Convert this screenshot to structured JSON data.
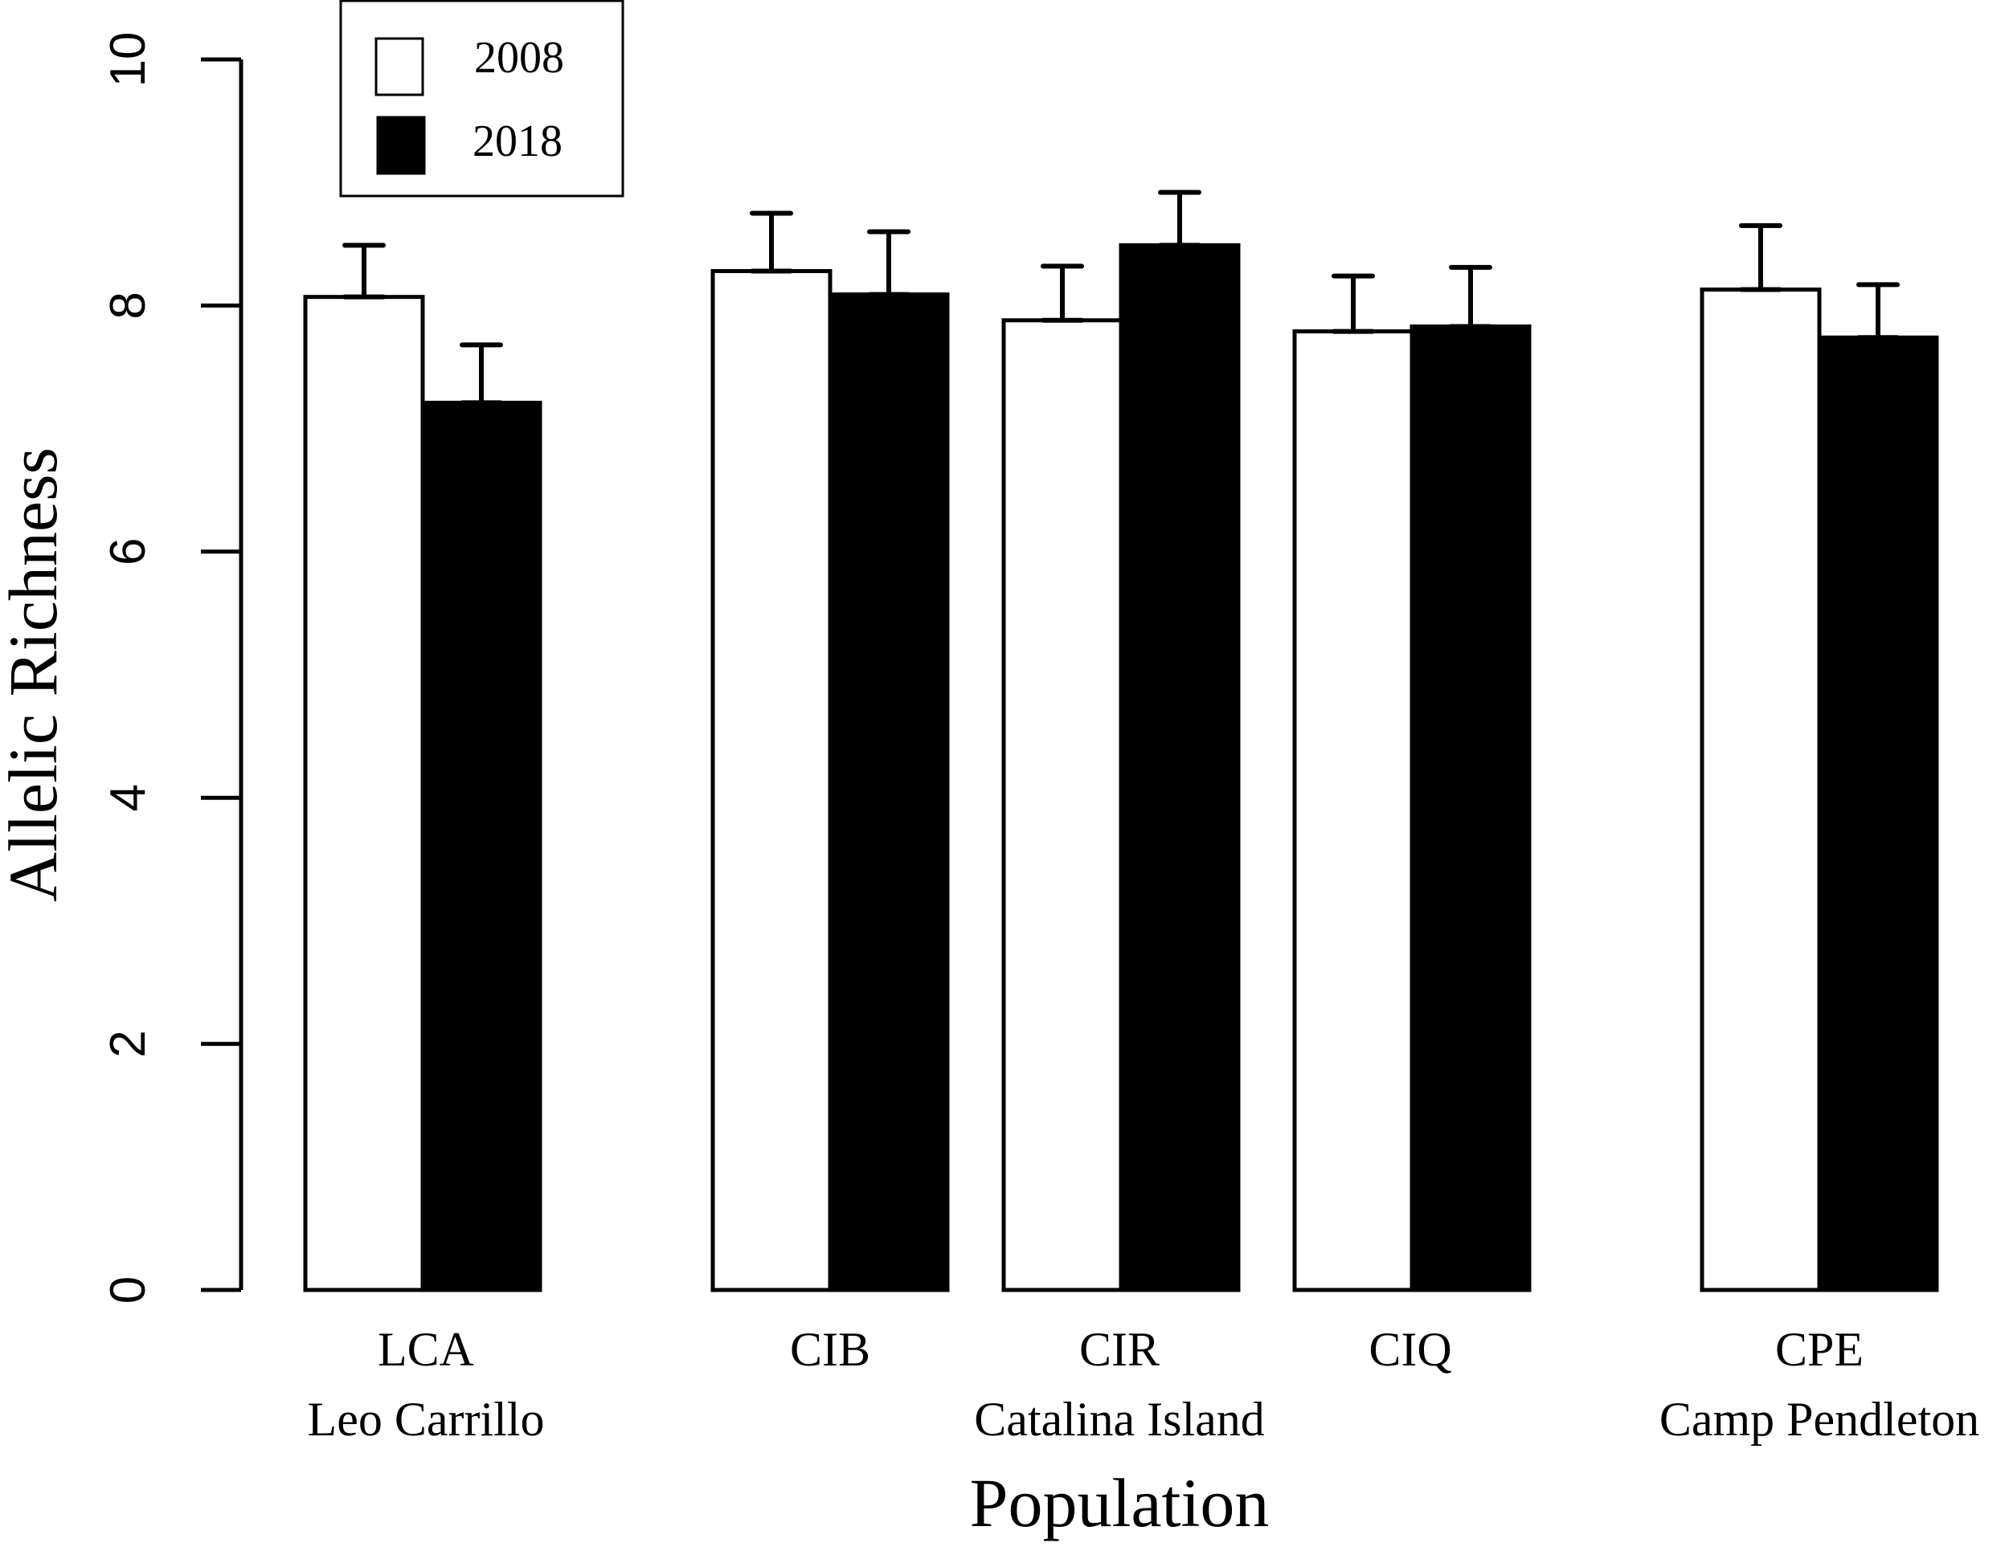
{
  "chart_data": {
    "type": "bar",
    "title": "",
    "xlabel": "Population",
    "ylabel": "Allelic Richness",
    "ylim": [
      0,
      10
    ],
    "yticks": [
      0,
      2,
      4,
      6,
      8,
      10
    ],
    "grid": false,
    "legend_position": "top-left",
    "categories": [
      "LCA",
      "CIB",
      "CIR",
      "CIQ",
      "CPE"
    ],
    "category_sublabels": [
      {
        "text": "Leo Carrillo",
        "under": "LCA"
      },
      {
        "text": "Catalina Island",
        "under": "CIR"
      },
      {
        "text": "Camp Pendleton",
        "under": "CPE"
      }
    ],
    "series": [
      {
        "name": "2008",
        "color": "#ffffff",
        "values": [
          8.07,
          8.28,
          7.88,
          7.79,
          8.13
        ],
        "error_upper": [
          8.49,
          8.75,
          8.32,
          8.24,
          8.65
        ]
      },
      {
        "name": "2018",
        "color": "#000000",
        "values": [
          7.21,
          8.09,
          8.49,
          7.83,
          7.74
        ],
        "error_upper": [
          7.68,
          8.6,
          8.92,
          8.31,
          8.17
        ]
      }
    ]
  },
  "labels": {
    "ylabel": "Allelic Richness",
    "xlabel": "Population",
    "legend": [
      "2008",
      "2018"
    ],
    "categories": [
      "LCA",
      "CIB",
      "CIR",
      "CIQ",
      "CPE"
    ],
    "sublabels": [
      "Leo Carrillo",
      "Catalina Island",
      "Camp Pendleton"
    ],
    "yticks": [
      "0",
      "2",
      "4",
      "6",
      "8",
      "10"
    ]
  }
}
